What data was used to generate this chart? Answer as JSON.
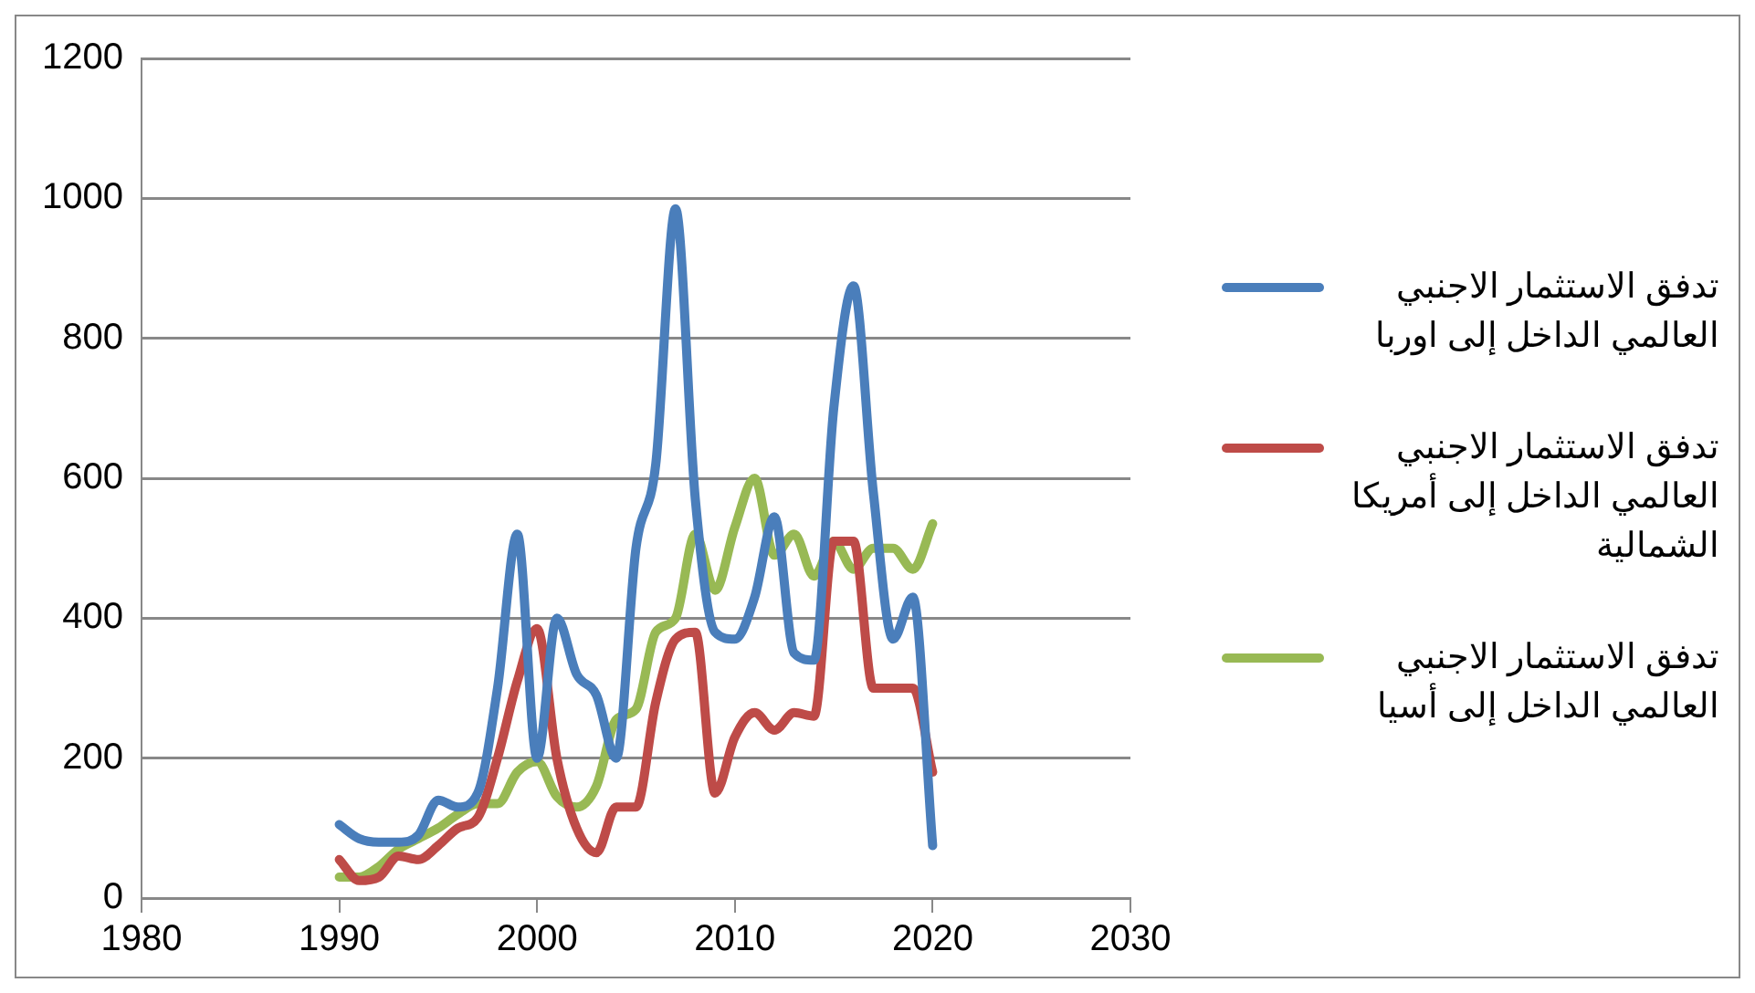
{
  "chart_data": {
    "type": "line",
    "x": [
      1990,
      1991,
      1992,
      1993,
      1994,
      1995,
      1996,
      1997,
      1998,
      1999,
      2000,
      2001,
      2002,
      2003,
      2004,
      2005,
      2006,
      2007,
      2008,
      2009,
      2010,
      2011,
      2012,
      2013,
      2014,
      2015,
      2016,
      2017,
      2018,
      2019,
      2020
    ],
    "xlim": [
      1980,
      2030
    ],
    "xticks": [
      1980,
      1990,
      2000,
      2010,
      2020,
      2030
    ],
    "ylim": [
      0,
      1200
    ],
    "yticks": [
      0,
      200,
      400,
      600,
      800,
      1000,
      1200
    ],
    "grid": "y",
    "legend": "right",
    "marker": "none",
    "series": [
      {
        "name": "تدفق الاستثمار الاجنبي العالمي الداخل إلى اوربا",
        "color": "#4a7ebb",
        "values": [
          105,
          85,
          80,
          80,
          90,
          140,
          130,
          150,
          300,
          520,
          200,
          400,
          320,
          290,
          200,
          500,
          620,
          985,
          570,
          380,
          370,
          430,
          545,
          350,
          340,
          700,
          875,
          580,
          370,
          430,
          75
        ]
      },
      {
        "name": "تدفق الاستثمار الاجنبي العالمي الداخل إلى أمريكا الشمالية",
        "color": "#be4b48",
        "values": [
          55,
          25,
          30,
          60,
          55,
          75,
          100,
          115,
          200,
          310,
          385,
          200,
          100,
          65,
          130,
          130,
          280,
          370,
          380,
          150,
          230,
          265,
          240,
          265,
          260,
          510,
          510,
          300,
          300,
          300,
          180
        ]
      },
      {
        "name": "تدفق الاستثمار الاجنبي العالمي الداخل إلى أسيا",
        "color": "#98b954",
        "values": [
          30,
          30,
          45,
          70,
          85,
          100,
          120,
          135,
          135,
          180,
          195,
          145,
          130,
          160,
          255,
          270,
          380,
          400,
          520,
          440,
          530,
          600,
          490,
          520,
          460,
          510,
          470,
          500,
          500,
          470,
          535
        ]
      }
    ]
  }
}
